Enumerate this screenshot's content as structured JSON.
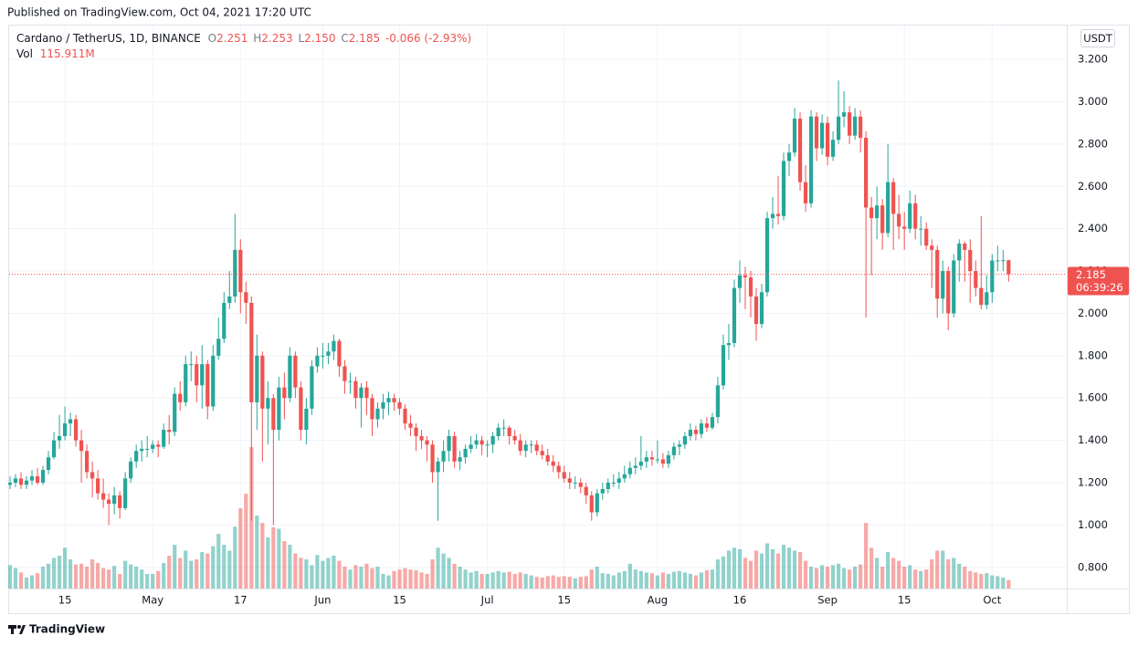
{
  "header": {
    "published": "Published on TradingView.com, Oct 04, 2021 17:20 UTC",
    "brand": "TradingView"
  },
  "chart_data": {
    "type": "candlestick",
    "legend": {
      "symbol": "Cardano / TetherUS, 1D, BINANCE",
      "items": [
        {
          "key": "O",
          "value": "2.251"
        },
        {
          "key": "H",
          "value": "2.253"
        },
        {
          "key": "L",
          "value": "2.150"
        },
        {
          "key": "C",
          "value": "2.185"
        }
      ],
      "change": "-0.066 (-2.93%)",
      "volume_key": "Vol",
      "volume": "115.911M"
    },
    "currency": "USDT",
    "up_color": "#26a69a",
    "down_color": "#ef5350",
    "xlim": [
      0,
      192.6
    ],
    "xticks": [
      {
        "value": 10,
        "label": "15"
      },
      {
        "value": 26,
        "label": "May"
      },
      {
        "value": 42,
        "label": "17"
      },
      {
        "value": 57,
        "label": "Jun"
      },
      {
        "value": 71,
        "label": "15"
      },
      {
        "value": 87,
        "label": "Jul"
      },
      {
        "value": 101,
        "label": "15"
      },
      {
        "value": 118,
        "label": "Aug"
      },
      {
        "value": 133,
        "label": "16"
      },
      {
        "value": 149,
        "label": "Sep"
      },
      {
        "value": 163,
        "label": "15"
      },
      {
        "value": 179,
        "label": "Oct"
      }
    ],
    "ylim": [
      0.7,
      3.36
    ],
    "yticks": [
      {
        "value": 0.8,
        "label": "0.800"
      },
      {
        "value": 1.0,
        "label": "1.000"
      },
      {
        "value": 1.2,
        "label": "1.200"
      },
      {
        "value": 1.4,
        "label": "1.400"
      },
      {
        "value": 1.6,
        "label": "1.600"
      },
      {
        "value": 1.8,
        "label": "1.800"
      },
      {
        "value": 2.0,
        "label": "2.000"
      },
      {
        "value": 2.2,
        "label": "2.200"
      },
      {
        "value": 2.4,
        "label": "2.400"
      },
      {
        "value": 2.6,
        "label": "2.600"
      },
      {
        "value": 2.8,
        "label": "2.800"
      },
      {
        "value": 3.0,
        "label": "3.000"
      },
      {
        "value": 3.2,
        "label": "3.200"
      }
    ],
    "grid": true,
    "last_price": {
      "value": 2.185,
      "label": "2.185",
      "countdown": "06:39:26"
    },
    "open": [
      1.19,
      1.2,
      1.22,
      1.19,
      1.21,
      1.23,
      1.2,
      1.26,
      1.32,
      1.4,
      1.42,
      1.48,
      1.5,
      1.4,
      1.35,
      1.25,
      1.22,
      1.15,
      1.12,
      1.1,
      1.14,
      1.08,
      1.22,
      1.3,
      1.35,
      1.36,
      1.36,
      1.38,
      1.37,
      1.45,
      1.44,
      1.62,
      1.58,
      1.76,
      1.76,
      1.66,
      1.76,
      1.56,
      1.8,
      1.88,
      2.05,
      2.08,
      2.3,
      2.1,
      2.05,
      1.58,
      1.8,
      1.55,
      1.6,
      1.45,
      1.65,
      1.6,
      1.8,
      1.65,
      1.45,
      1.55,
      1.75,
      1.8,
      1.8,
      1.82,
      1.87,
      1.75,
      1.68,
      1.68,
      1.6,
      1.65,
      1.6,
      1.5,
      1.55,
      1.58,
      1.6,
      1.58,
      1.55,
      1.48,
      1.46,
      1.42,
      1.4,
      1.38,
      1.25,
      1.3,
      1.35,
      1.42,
      1.3,
      1.32,
      1.36,
      1.38,
      1.4,
      1.38,
      1.38,
      1.42,
      1.46,
      1.46,
      1.42,
      1.4,
      1.35,
      1.38,
      1.38,
      1.35,
      1.33,
      1.3,
      1.28,
      1.25,
      1.22,
      1.2,
      1.2,
      1.18,
      1.14,
      1.06,
      1.15,
      1.17,
      1.2,
      1.2,
      1.22,
      1.24,
      1.27,
      1.28,
      1.3,
      1.32,
      1.31,
      1.31,
      1.29,
      1.33,
      1.37,
      1.38,
      1.42,
      1.45,
      1.43,
      1.48,
      1.46,
      1.51,
      1.66,
      1.85,
      1.86,
      2.12,
      2.18,
      2.17,
      2.08,
      1.95,
      2.1,
      2.45,
      2.47,
      2.46,
      2.72,
      2.76,
      2.92,
      2.62,
      2.52,
      2.93,
      2.78,
      2.9,
      2.74,
      2.82,
      2.93,
      2.95,
      2.84,
      2.93,
      2.83,
      2.5,
      2.45,
      2.51,
      2.38,
      2.62,
      2.47,
      2.41,
      2.4,
      2.52,
      2.4,
      2.4,
      2.32,
      2.3,
      2.07,
      2.2,
      2.0,
      2.25,
      2.33,
      2.3,
      2.2,
      2.12,
      2.04,
      2.1,
      2.25,
      2.25,
      2.251
    ],
    "high": [
      1.23,
      1.24,
      1.25,
      1.23,
      1.26,
      1.27,
      1.28,
      1.35,
      1.44,
      1.52,
      1.56,
      1.53,
      1.52,
      1.45,
      1.38,
      1.3,
      1.26,
      1.22,
      1.15,
      1.18,
      1.16,
      1.25,
      1.32,
      1.38,
      1.4,
      1.42,
      1.4,
      1.4,
      1.48,
      1.52,
      1.65,
      1.68,
      1.8,
      1.82,
      1.8,
      1.85,
      1.78,
      1.85,
      1.98,
      2.1,
      2.2,
      2.47,
      2.35,
      2.15,
      2.08,
      1.9,
      1.82,
      1.68,
      1.62,
      1.7,
      1.72,
      1.84,
      1.82,
      1.68,
      1.6,
      1.78,
      1.84,
      1.86,
      1.86,
      1.9,
      1.88,
      1.78,
      1.72,
      1.7,
      1.67,
      1.68,
      1.62,
      1.58,
      1.62,
      1.63,
      1.62,
      1.6,
      1.57,
      1.52,
      1.48,
      1.45,
      1.42,
      1.4,
      1.32,
      1.4,
      1.45,
      1.44,
      1.35,
      1.38,
      1.42,
      1.43,
      1.42,
      1.4,
      1.44,
      1.48,
      1.5,
      1.47,
      1.45,
      1.43,
      1.4,
      1.4,
      1.4,
      1.38,
      1.36,
      1.33,
      1.3,
      1.28,
      1.25,
      1.23,
      1.22,
      1.2,
      1.16,
      1.17,
      1.2,
      1.22,
      1.24,
      1.25,
      1.28,
      1.3,
      1.32,
      1.42,
      1.35,
      1.35,
      1.4,
      1.34,
      1.35,
      1.39,
      1.4,
      1.44,
      1.48,
      1.47,
      1.5,
      1.51,
      1.53,
      1.7,
      1.9,
      1.95,
      2.16,
      2.25,
      2.22,
      2.2,
      2.12,
      2.14,
      2.48,
      2.55,
      2.65,
      2.76,
      2.8,
      2.97,
      2.95,
      2.7,
      2.96,
      2.95,
      2.94,
      2.93,
      2.86,
      3.1,
      3.05,
      2.98,
      2.97,
      2.96,
      2.86,
      2.55,
      2.6,
      2.54,
      2.8,
      2.64,
      2.56,
      2.48,
      2.58,
      2.56,
      2.46,
      2.43,
      2.35,
      2.32,
      2.25,
      2.22,
      2.28,
      2.35,
      2.34,
      2.35,
      2.25,
      2.46,
      2.18,
      2.28,
      2.32,
      2.3,
      2.253
    ],
    "low": [
      1.17,
      1.18,
      1.17,
      1.17,
      1.19,
      1.19,
      1.19,
      1.24,
      1.31,
      1.36,
      1.4,
      1.42,
      1.37,
      1.2,
      1.22,
      1.13,
      1.12,
      1.08,
      1.0,
      1.05,
      1.03,
      1.07,
      1.2,
      1.27,
      1.3,
      1.32,
      1.34,
      1.32,
      1.36,
      1.38,
      1.42,
      1.54,
      1.56,
      1.68,
      1.58,
      1.55,
      1.5,
      1.54,
      1.78,
      1.86,
      2.02,
      2.05,
      2.0,
      1.95,
      1.02,
      1.45,
      1.3,
      1.38,
      1.0,
      1.4,
      1.5,
      1.58,
      1.6,
      1.4,
      1.38,
      1.52,
      1.72,
      1.74,
      1.76,
      1.78,
      1.7,
      1.62,
      1.62,
      1.55,
      1.46,
      1.52,
      1.42,
      1.46,
      1.5,
      1.52,
      1.54,
      1.52,
      1.45,
      1.42,
      1.35,
      1.36,
      1.3,
      1.2,
      1.02,
      1.25,
      1.3,
      1.27,
      1.26,
      1.29,
      1.34,
      1.36,
      1.33,
      1.32,
      1.34,
      1.4,
      1.42,
      1.38,
      1.38,
      1.33,
      1.32,
      1.34,
      1.33,
      1.31,
      1.28,
      1.25,
      1.22,
      1.2,
      1.17,
      1.17,
      1.15,
      1.1,
      1.02,
      1.04,
      1.12,
      1.15,
      1.18,
      1.17,
      1.2,
      1.22,
      1.24,
      1.26,
      1.27,
      1.28,
      1.29,
      1.27,
      1.27,
      1.31,
      1.33,
      1.36,
      1.4,
      1.4,
      1.41,
      1.44,
      1.45,
      1.48,
      1.64,
      1.78,
      1.84,
      2.05,
      2.02,
      1.98,
      1.87,
      1.93,
      2.08,
      2.4,
      2.42,
      2.44,
      2.65,
      2.74,
      2.58,
      2.48,
      2.5,
      2.72,
      2.75,
      2.7,
      2.72,
      2.8,
      2.88,
      2.8,
      2.82,
      2.76,
      1.98,
      2.18,
      2.35,
      2.3,
      2.36,
      2.3,
      2.35,
      2.3,
      2.38,
      2.35,
      2.32,
      2.3,
      2.12,
      1.98,
      2.0,
      1.92,
      1.98,
      2.15,
      2.15,
      2.05,
      2.08,
      2.02,
      2.02,
      2.05,
      2.2,
      2.2,
      2.15
    ],
    "close": [
      1.2,
      1.22,
      1.19,
      1.21,
      1.23,
      1.2,
      1.26,
      1.32,
      1.4,
      1.42,
      1.48,
      1.5,
      1.4,
      1.35,
      1.25,
      1.22,
      1.15,
      1.12,
      1.1,
      1.14,
      1.08,
      1.22,
      1.3,
      1.35,
      1.36,
      1.36,
      1.38,
      1.37,
      1.45,
      1.44,
      1.62,
      1.58,
      1.76,
      1.76,
      1.66,
      1.76,
      1.56,
      1.8,
      1.88,
      2.05,
      2.08,
      2.3,
      2.1,
      2.05,
      1.58,
      1.8,
      1.55,
      1.6,
      1.45,
      1.65,
      1.6,
      1.8,
      1.65,
      1.45,
      1.55,
      1.75,
      1.8,
      1.8,
      1.82,
      1.87,
      1.75,
      1.68,
      1.68,
      1.6,
      1.65,
      1.6,
      1.5,
      1.55,
      1.58,
      1.6,
      1.58,
      1.55,
      1.48,
      1.46,
      1.42,
      1.4,
      1.38,
      1.25,
      1.3,
      1.35,
      1.42,
      1.3,
      1.32,
      1.36,
      1.38,
      1.4,
      1.38,
      1.38,
      1.42,
      1.46,
      1.46,
      1.42,
      1.4,
      1.35,
      1.38,
      1.38,
      1.35,
      1.33,
      1.3,
      1.28,
      1.25,
      1.22,
      1.2,
      1.2,
      1.18,
      1.14,
      1.06,
      1.15,
      1.17,
      1.2,
      1.2,
      1.22,
      1.24,
      1.27,
      1.28,
      1.3,
      1.32,
      1.31,
      1.31,
      1.29,
      1.33,
      1.37,
      1.38,
      1.42,
      1.45,
      1.43,
      1.48,
      1.46,
      1.51,
      1.66,
      1.85,
      1.86,
      2.12,
      2.18,
      2.17,
      2.08,
      1.95,
      2.1,
      2.45,
      2.47,
      2.46,
      2.72,
      2.76,
      2.92,
      2.62,
      2.52,
      2.93,
      2.78,
      2.9,
      2.74,
      2.82,
      2.93,
      2.95,
      2.84,
      2.93,
      2.83,
      2.5,
      2.45,
      2.51,
      2.38,
      2.62,
      2.47,
      2.41,
      2.4,
      2.52,
      2.4,
      2.4,
      2.32,
      2.3,
      2.07,
      2.2,
      2.0,
      2.25,
      2.33,
      2.3,
      2.2,
      2.12,
      2.04,
      2.1,
      2.25,
      2.25,
      2.251,
      2.185
    ],
    "volume": [
      320,
      280,
      220,
      150,
      180,
      210,
      300,
      340,
      420,
      450,
      560,
      400,
      330,
      340,
      300,
      400,
      350,
      280,
      260,
      310,
      200,
      380,
      330,
      300,
      260,
      200,
      200,
      240,
      350,
      450,
      600,
      420,
      520,
      380,
      400,
      500,
      480,
      580,
      750,
      600,
      520,
      850,
      1100,
      1300,
      1940,
      1000,
      900,
      700,
      840,
      820,
      650,
      600,
      480,
      420,
      400,
      320,
      460,
      380,
      420,
      450,
      380,
      300,
      260,
      320,
      300,
      340,
      280,
      300,
      200,
      180,
      240,
      260,
      280,
      260,
      250,
      220,
      200,
      400,
      560,
      480,
      420,
      340,
      300,
      260,
      220,
      240,
      200,
      200,
      220,
      240,
      220,
      230,
      200,
      220,
      200,
      180,
      160,
      150,
      170,
      180,
      160,
      170,
      160,
      140,
      160,
      170,
      260,
      300,
      210,
      200,
      180,
      220,
      240,
      340,
      260,
      240,
      220,
      210,
      180,
      220,
      200,
      230,
      240,
      220,
      200,
      180,
      220,
      250,
      260,
      400,
      440,
      520,
      560,
      540,
      420,
      380,
      520,
      480,
      620,
      540,
      480,
      600,
      560,
      520,
      500,
      380,
      300,
      280,
      320,
      300,
      320,
      340,
      280,
      260,
      300,
      330,
      900,
      560,
      420,
      300,
      500,
      420,
      380,
      300,
      320,
      260,
      240,
      260,
      400,
      520,
      520,
      400,
      420,
      340,
      300,
      240,
      220,
      200,
      210,
      180,
      170,
      150,
      115.911
    ]
  }
}
